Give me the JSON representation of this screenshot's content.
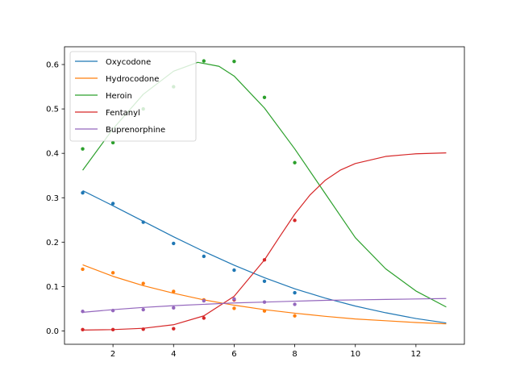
{
  "chart_data": {
    "type": "line",
    "title": "",
    "xlabel": "",
    "ylabel": "",
    "xlim": [
      0.4,
      13.6
    ],
    "ylim": [
      -0.03,
      0.64
    ],
    "xticks": [
      2,
      4,
      6,
      8,
      10,
      12
    ],
    "yticks": [
      0.0,
      0.1,
      0.2,
      0.3,
      0.4,
      0.5,
      0.6
    ],
    "xtick_labels": [
      "2",
      "4",
      "6",
      "8",
      "10",
      "12"
    ],
    "ytick_labels": [
      "0.0",
      "0.1",
      "0.2",
      "0.3",
      "0.4",
      "0.5",
      "0.6"
    ],
    "grid": false,
    "legend_position": "top-left",
    "series": [
      {
        "name": "Oxycodone",
        "color": "#1f77b4",
        "points": {
          "x": [
            1,
            2,
            3,
            4,
            5,
            6,
            7,
            8
          ],
          "y": [
            0.311,
            0.287,
            0.245,
            0.197,
            0.168,
            0.137,
            0.112,
            0.086
          ]
        },
        "fit": {
          "x": [
            1,
            2,
            3,
            4,
            5,
            6,
            7,
            8,
            9,
            10,
            11,
            12,
            13
          ],
          "y": [
            0.316,
            0.282,
            0.247,
            0.212,
            0.179,
            0.148,
            0.12,
            0.095,
            0.074,
            0.056,
            0.041,
            0.028,
            0.018
          ]
        }
      },
      {
        "name": "Hydrocodone",
        "color": "#ff7f0e",
        "points": {
          "x": [
            1,
            2,
            3,
            4,
            5,
            6,
            7,
            8
          ],
          "y": [
            0.139,
            0.131,
            0.107,
            0.089,
            0.07,
            0.051,
            0.045,
            0.034
          ]
        },
        "fit": {
          "x": [
            1,
            2,
            3,
            4,
            5,
            6,
            7,
            8,
            9,
            10,
            11,
            12,
            13
          ],
          "y": [
            0.149,
            0.123,
            0.102,
            0.085,
            0.07,
            0.058,
            0.048,
            0.04,
            0.033,
            0.027,
            0.023,
            0.019,
            0.016
          ]
        }
      },
      {
        "name": "Heroin",
        "color": "#2ca02c",
        "points": {
          "x": [
            1,
            2,
            3,
            4,
            5,
            6,
            7,
            8
          ],
          "y": [
            0.41,
            0.424,
            0.5,
            0.55,
            0.608,
            0.607,
            0.526,
            0.379
          ]
        },
        "fit": {
          "x": [
            1,
            2,
            3,
            4,
            4.8,
            5.5,
            6,
            7,
            8,
            9,
            10,
            11,
            12,
            13
          ],
          "y": [
            0.362,
            0.455,
            0.533,
            0.585,
            0.605,
            0.596,
            0.574,
            0.502,
            0.41,
            0.31,
            0.21,
            0.14,
            0.09,
            0.054
          ]
        }
      },
      {
        "name": "Fentanyl",
        "color": "#d62728",
        "points": {
          "x": [
            1,
            2,
            3,
            4,
            5,
            6,
            7,
            8
          ],
          "y": [
            0.003,
            0.003,
            0.004,
            0.005,
            0.029,
            0.07,
            0.16,
            0.249
          ]
        },
        "fit": {
          "x": [
            1,
            2,
            3,
            4,
            5,
            6,
            7,
            7.5,
            8,
            8.5,
            9,
            9.5,
            10,
            11,
            12,
            13
          ],
          "y": [
            0.002,
            0.003,
            0.006,
            0.014,
            0.034,
            0.078,
            0.16,
            0.212,
            0.263,
            0.306,
            0.339,
            0.362,
            0.377,
            0.393,
            0.399,
            0.401
          ]
        }
      },
      {
        "name": "Buprenorphine",
        "color": "#9467bd",
        "points": {
          "x": [
            1,
            2,
            3,
            4,
            5,
            6,
            7,
            8
          ],
          "y": [
            0.044,
            0.046,
            0.048,
            0.052,
            0.068,
            0.072,
            0.065,
            0.06
          ]
        },
        "fit": {
          "x": [
            1,
            2,
            3,
            4,
            5,
            6,
            7,
            8,
            9,
            10,
            11,
            12,
            13
          ],
          "y": [
            0.042,
            0.048,
            0.053,
            0.057,
            0.06,
            0.063,
            0.065,
            0.067,
            0.069,
            0.07,
            0.071,
            0.072,
            0.073
          ]
        }
      }
    ]
  }
}
